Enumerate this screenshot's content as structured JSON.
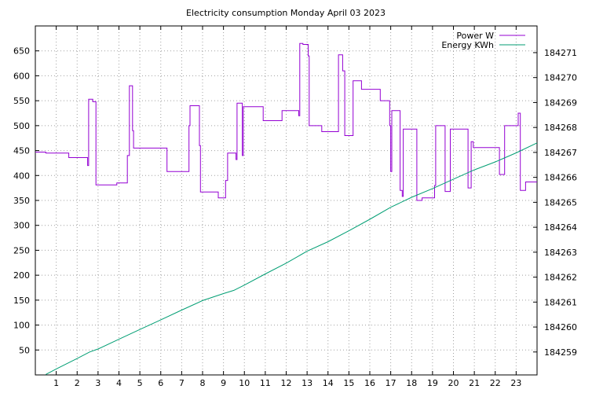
{
  "chart_data": {
    "type": "line",
    "title": "Electricity consumption Monday April 03 2023",
    "x_ticks": [
      "1",
      "2",
      "3",
      "4",
      "5",
      "6",
      "7",
      "8",
      "9",
      "10",
      "11",
      "12",
      "13",
      "14",
      "15",
      "16",
      "17",
      "18",
      "19",
      "20",
      "21",
      "22",
      "23"
    ],
    "x_range": [
      0,
      24
    ],
    "y_ticks": [
      "50",
      "100",
      "150",
      "200",
      "250",
      "300",
      "350",
      "400",
      "450",
      "500",
      "550",
      "600",
      "650"
    ],
    "y_range": [
      0,
      700
    ],
    "y2_ticks": [
      "184259",
      "184260",
      "184261",
      "184262",
      "184263",
      "184264",
      "184265",
      "184266",
      "184267",
      "184268",
      "184269",
      "184270",
      "184271"
    ],
    "y2_range": [
      184258.08,
      184272.07
    ],
    "grid": true,
    "legend_position": "top-right",
    "series": [
      {
        "name": "Power W",
        "color": "#9400d3",
        "axis": "y",
        "points": [
          [
            0,
            447
          ],
          [
            0.5,
            447
          ],
          [
            0.5,
            445
          ],
          [
            1.6,
            445
          ],
          [
            1.6,
            436
          ],
          [
            2.5,
            436
          ],
          [
            2.5,
            420
          ],
          [
            2.55,
            420
          ],
          [
            2.55,
            553
          ],
          [
            2.75,
            553
          ],
          [
            2.75,
            548
          ],
          [
            2.9,
            548
          ],
          [
            2.9,
            381
          ],
          [
            3.9,
            381
          ],
          [
            3.9,
            385
          ],
          [
            4.4,
            385
          ],
          [
            4.4,
            440
          ],
          [
            4.5,
            440
          ],
          [
            4.5,
            580
          ],
          [
            4.65,
            580
          ],
          [
            4.65,
            490
          ],
          [
            4.7,
            490
          ],
          [
            4.7,
            455
          ],
          [
            6.3,
            455
          ],
          [
            6.3,
            408
          ],
          [
            7.35,
            408
          ],
          [
            7.35,
            500
          ],
          [
            7.4,
            500
          ],
          [
            7.4,
            540
          ],
          [
            7.85,
            540
          ],
          [
            7.85,
            460
          ],
          [
            7.9,
            460
          ],
          [
            7.9,
            367
          ],
          [
            8.75,
            367
          ],
          [
            8.75,
            355
          ],
          [
            9.1,
            355
          ],
          [
            9.1,
            390
          ],
          [
            9.2,
            390
          ],
          [
            9.2,
            445
          ],
          [
            9.6,
            445
          ],
          [
            9.6,
            432
          ],
          [
            9.65,
            432
          ],
          [
            9.65,
            545
          ],
          [
            9.9,
            545
          ],
          [
            9.9,
            440
          ],
          [
            9.95,
            440
          ],
          [
            9.95,
            538
          ],
          [
            10.9,
            538
          ],
          [
            10.9,
            510
          ],
          [
            11.8,
            510
          ],
          [
            11.8,
            530
          ],
          [
            12.6,
            530
          ],
          [
            12.6,
            520
          ],
          [
            12.65,
            520
          ],
          [
            12.65,
            665
          ],
          [
            12.8,
            665
          ],
          [
            12.8,
            663
          ],
          [
            13.05,
            663
          ],
          [
            13.05,
            640
          ],
          [
            13.1,
            640
          ],
          [
            13.1,
            500
          ],
          [
            13.7,
            500
          ],
          [
            13.7,
            488
          ],
          [
            14.5,
            488
          ],
          [
            14.5,
            642
          ],
          [
            14.7,
            642
          ],
          [
            14.7,
            610
          ],
          [
            14.8,
            610
          ],
          [
            14.8,
            480
          ],
          [
            15.2,
            480
          ],
          [
            15.2,
            590
          ],
          [
            15.6,
            590
          ],
          [
            15.6,
            573
          ],
          [
            16.5,
            573
          ],
          [
            16.5,
            550
          ],
          [
            16.95,
            550
          ],
          [
            16.95,
            500
          ],
          [
            17.0,
            500
          ],
          [
            17.0,
            408
          ],
          [
            17.05,
            408
          ],
          [
            17.05,
            530
          ],
          [
            17.45,
            530
          ],
          [
            17.45,
            370
          ],
          [
            17.55,
            370
          ],
          [
            17.55,
            358
          ],
          [
            17.6,
            358
          ],
          [
            17.6,
            493
          ],
          [
            18.25,
            493
          ],
          [
            18.25,
            350
          ],
          [
            18.5,
            350
          ],
          [
            18.5,
            355
          ],
          [
            19.1,
            355
          ],
          [
            19.1,
            380
          ],
          [
            19.15,
            380
          ],
          [
            19.15,
            500
          ],
          [
            19.6,
            500
          ],
          [
            19.6,
            368
          ],
          [
            19.85,
            368
          ],
          [
            19.85,
            493
          ],
          [
            20.7,
            493
          ],
          [
            20.7,
            375
          ],
          [
            20.85,
            375
          ],
          [
            20.85,
            468
          ],
          [
            20.95,
            468
          ],
          [
            20.95,
            456
          ],
          [
            22.2,
            456
          ],
          [
            22.2,
            402
          ],
          [
            22.45,
            402
          ],
          [
            22.45,
            500
          ],
          [
            23.1,
            500
          ],
          [
            23.1,
            525
          ],
          [
            23.2,
            525
          ],
          [
            23.2,
            370
          ],
          [
            23.45,
            370
          ],
          [
            23.45,
            387
          ],
          [
            24,
            387
          ]
        ]
      },
      {
        "name": "Energy KWh",
        "color": "#009e73",
        "axis": "y2",
        "points": [
          [
            0.5,
            184258.1
          ],
          [
            1,
            184258.32
          ],
          [
            2,
            184258.74
          ],
          [
            2.6,
            184259.0
          ],
          [
            3,
            184259.12
          ],
          [
            4,
            184259.51
          ],
          [
            5,
            184259.9
          ],
          [
            6,
            184260.29
          ],
          [
            7,
            184260.68
          ],
          [
            8,
            184261.06
          ],
          [
            9,
            184261.34
          ],
          [
            9.5,
            184261.47
          ],
          [
            10,
            184261.68
          ],
          [
            11,
            184262.13
          ],
          [
            12,
            184262.56
          ],
          [
            13,
            184263.04
          ],
          [
            14,
            184263.42
          ],
          [
            15,
            184263.86
          ],
          [
            16,
            184264.32
          ],
          [
            17,
            184264.8
          ],
          [
            18,
            184265.2
          ],
          [
            19,
            184265.55
          ],
          [
            20,
            184265.93
          ],
          [
            21,
            184266.3
          ],
          [
            22,
            184266.62
          ],
          [
            23,
            184266.98
          ],
          [
            24,
            184267.38
          ]
        ]
      }
    ]
  }
}
